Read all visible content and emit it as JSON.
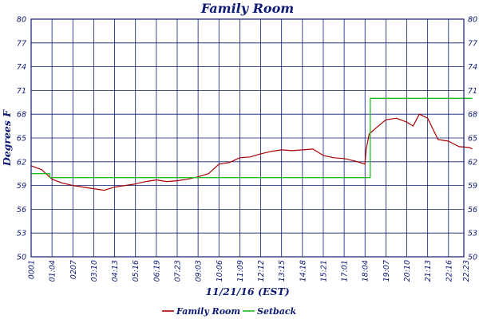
{
  "chart_data": {
    "type": "line",
    "title": "Family Room",
    "xlabel": "11/21/16 (EST)",
    "ylabel": "Degrees F",
    "ylim": [
      50,
      80
    ],
    "y_ticks": [
      "80",
      "77",
      "74",
      "71",
      "68",
      "65",
      "62",
      "59",
      "56",
      "53",
      "50"
    ],
    "x_ticks": [
      "0001",
      "01:04",
      "0207",
      "03:10",
      "04:13",
      "05:16",
      "06:19",
      "07:23",
      "09:03",
      "10:06",
      "11:09",
      "12:12",
      "13:15",
      "14:18",
      "15:21",
      "17:01",
      "18:04",
      "19:07",
      "20:10",
      "21:13",
      "22:16",
      "22:23"
    ],
    "grid": true,
    "legend_position": "bottom-center",
    "series": [
      {
        "name": "Family Room",
        "color": "#aa0000",
        "x_index": [
          0,
          0.5,
          1,
          1.5,
          2,
          2.5,
          3,
          3.5,
          4,
          4.5,
          5,
          5.5,
          6,
          6.5,
          7,
          7.5,
          8,
          8.5,
          9,
          9.5,
          10,
          10.5,
          11,
          11.5,
          12,
          12.5,
          13,
          13.5,
          14,
          14.5,
          15,
          15.5,
          16,
          16.05,
          16.2,
          16.5,
          17,
          17.5,
          18,
          18.3,
          18.6,
          19,
          19.5,
          20,
          20.5,
          21,
          21.14
        ],
        "values": [
          61.5,
          61,
          59.8,
          59.3,
          59.0,
          58.8,
          58.6,
          58.4,
          58.8,
          59.0,
          59.2,
          59.5,
          59.7,
          59.5,
          59.6,
          59.8,
          60.1,
          60.5,
          61.7,
          61.9,
          62.5,
          62.6,
          63.0,
          63.3,
          63.5,
          63.4,
          63.5,
          63.6,
          62.8,
          62.5,
          62.4,
          62.1,
          61.7,
          63.5,
          65.5,
          66.2,
          67.3,
          67.5,
          67.0,
          66.5,
          68.0,
          67.5,
          64.8,
          64.6,
          63.9,
          63.8,
          63.6
        ]
      },
      {
        "name": "Setback",
        "color": "#22bb22",
        "x_index": [
          0,
          0.9,
          0.9,
          16.25,
          16.25,
          21.14
        ],
        "values": [
          60.5,
          60.5,
          60.0,
          60.0,
          70.0,
          70.0
        ]
      }
    ]
  }
}
